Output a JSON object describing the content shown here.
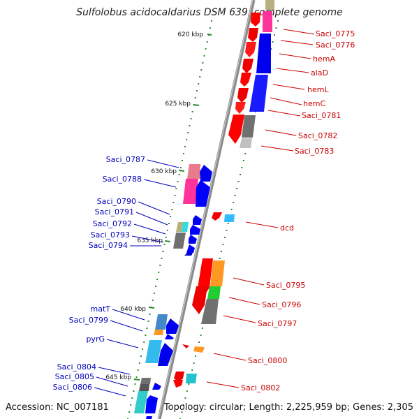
{
  "title": "Sulfolobus acidocaldarius DSM 639, complete genome",
  "footer": {
    "accession": "Accession: NC_007181",
    "stats": "Topology: circular; Length: 2,225,959 bp; Genes: 2,305"
  },
  "colors": {
    "forward_label": "#cc0000",
    "reverse_label": "#0000bb",
    "tick": "#2a8a2a",
    "backbone": "#8a8a8a"
  },
  "kbp_ticks": [
    "620 kbp",
    "625 kbp",
    "630 kbp",
    "635 kbp",
    "640 kbp",
    "645 kbp"
  ],
  "forward_labels": [
    "Saci_0775",
    "Saci_0776",
    "hemA",
    "alaD",
    "hemL",
    "hemC",
    "Saci_0781",
    "Saci_0782",
    "Saci_0783",
    "dcd",
    "Saci_0795",
    "Saci_0796",
    "Saci_0797",
    "Saci_0800",
    "Saci_0802"
  ],
  "reverse_labels": [
    "Saci_0787",
    "Saci_0788",
    "Saci_0790",
    "Saci_0791",
    "Saci_0792",
    "Saci_0793",
    "Saci_0794",
    "matT",
    "Saci_0799",
    "pyrG",
    "Saci_0804",
    "Saci_0805",
    "Saci_0806"
  ]
}
